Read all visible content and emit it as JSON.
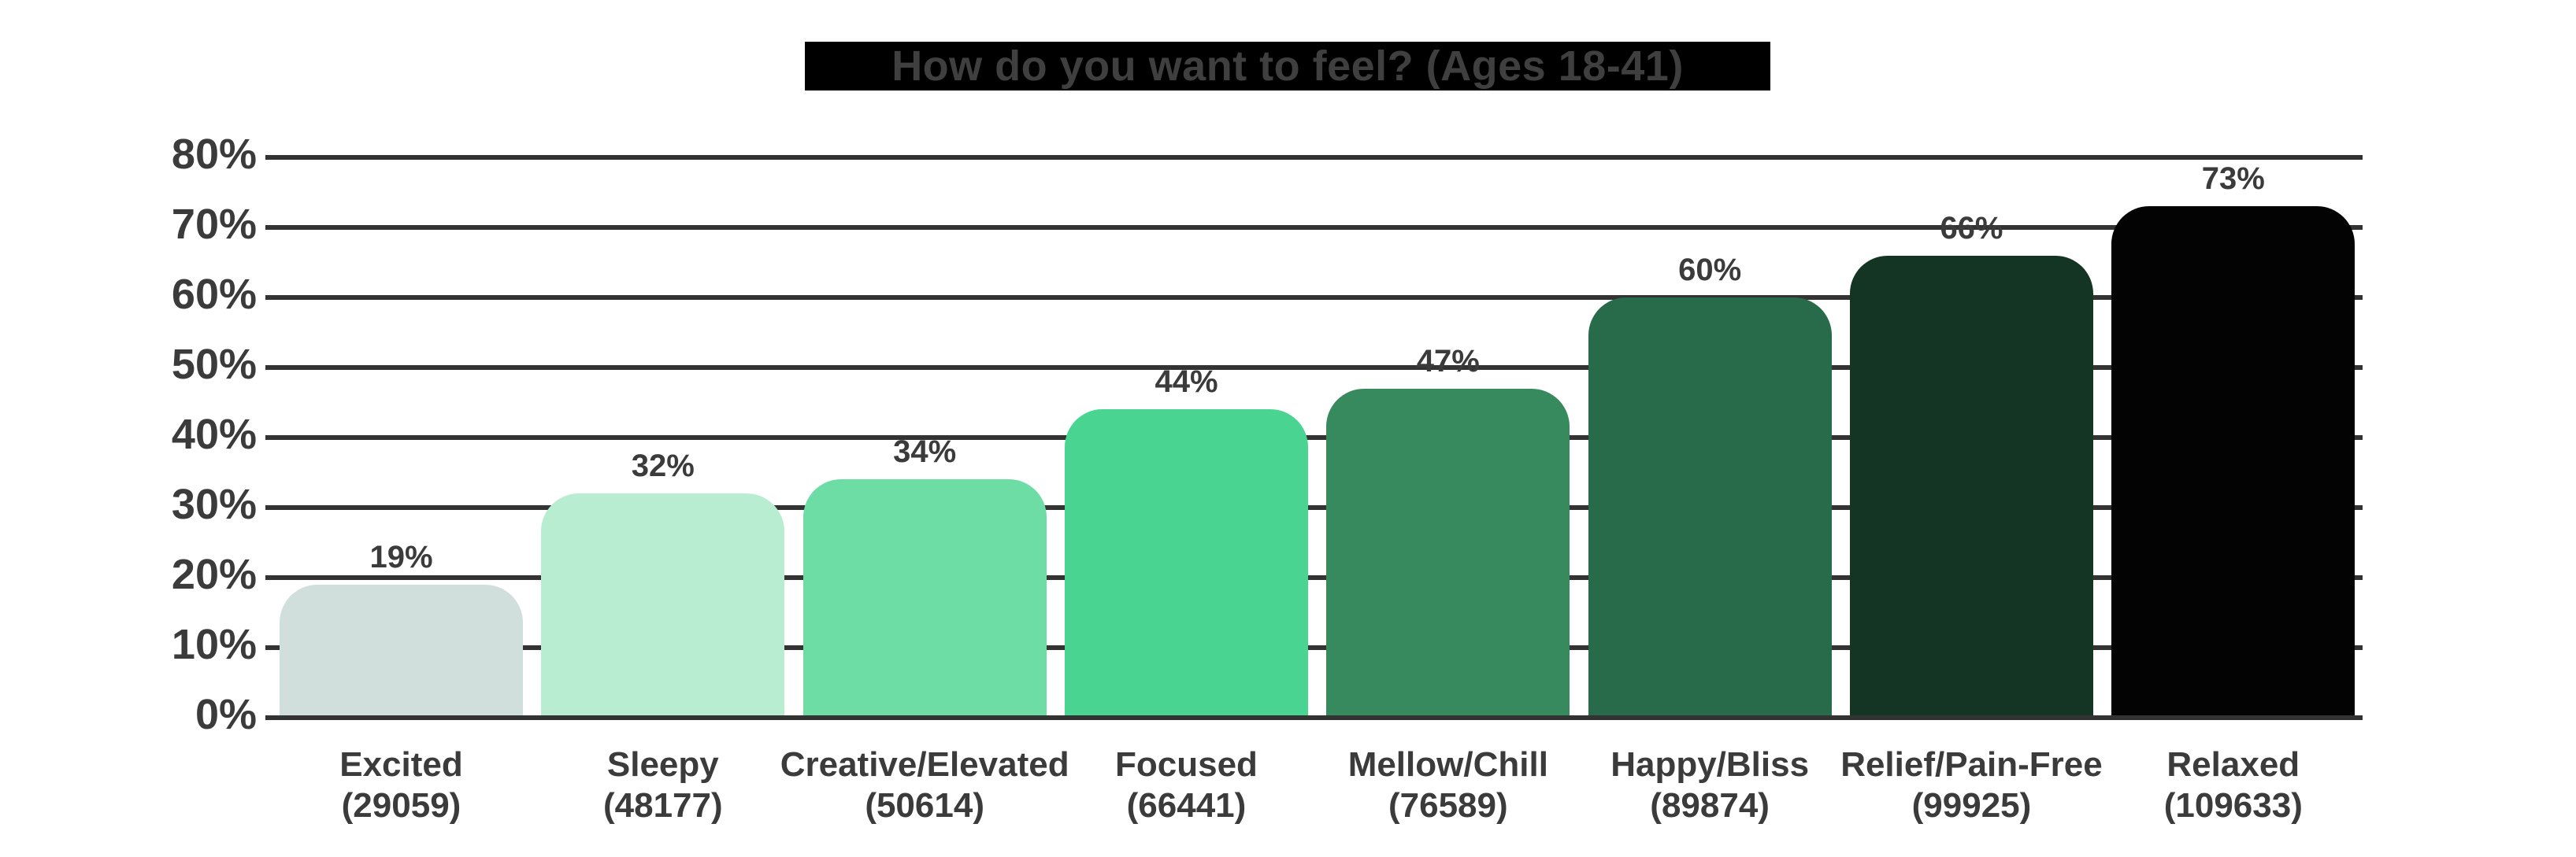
{
  "title": {
    "text": "How do you want to feel? (Ages 18-41)",
    "bg_color": "#000000",
    "text_color": "#3f3f3f"
  },
  "chart_data": {
    "type": "bar",
    "title": "How do you want to feel? (Ages 18-41)",
    "categories": [
      "Excited",
      "Sleepy",
      "Creative/Elevated",
      "Focused",
      "Mellow/Chill",
      "Happy/Bliss",
      "Relief/Pain-Free",
      "Relaxed"
    ],
    "counts": [
      29059,
      48177,
      50614,
      66441,
      76589,
      89874,
      99925,
      109633
    ],
    "category_sublabels": [
      "(29059)",
      "(48177)",
      "(50614)",
      "(66441)",
      "(76589)",
      "(89874)",
      "(99925)",
      "(109633)"
    ],
    "values": [
      19,
      32,
      34,
      44,
      47,
      60,
      66,
      73
    ],
    "value_labels": [
      "19%",
      "32%",
      "34%",
      "44%",
      "47%",
      "60%",
      "66%",
      "73%"
    ],
    "bar_colors": [
      "#d1dfdc",
      "#b9edd2",
      "#6ddda5",
      "#49d591",
      "#37895e",
      "#276b4b",
      "#143523",
      "#030303"
    ],
    "xlabel": "",
    "ylabel": "",
    "ylim": [
      0,
      80
    ],
    "y_tick_step": 10,
    "y_tick_labels": [
      "0%",
      "10%",
      "20%",
      "30%",
      "40%",
      "50%",
      "60%",
      "70%",
      "80%"
    ],
    "grid": true,
    "legend": false,
    "gridline_color": "#333333",
    "label_text_color": "#3b3b3b"
  }
}
